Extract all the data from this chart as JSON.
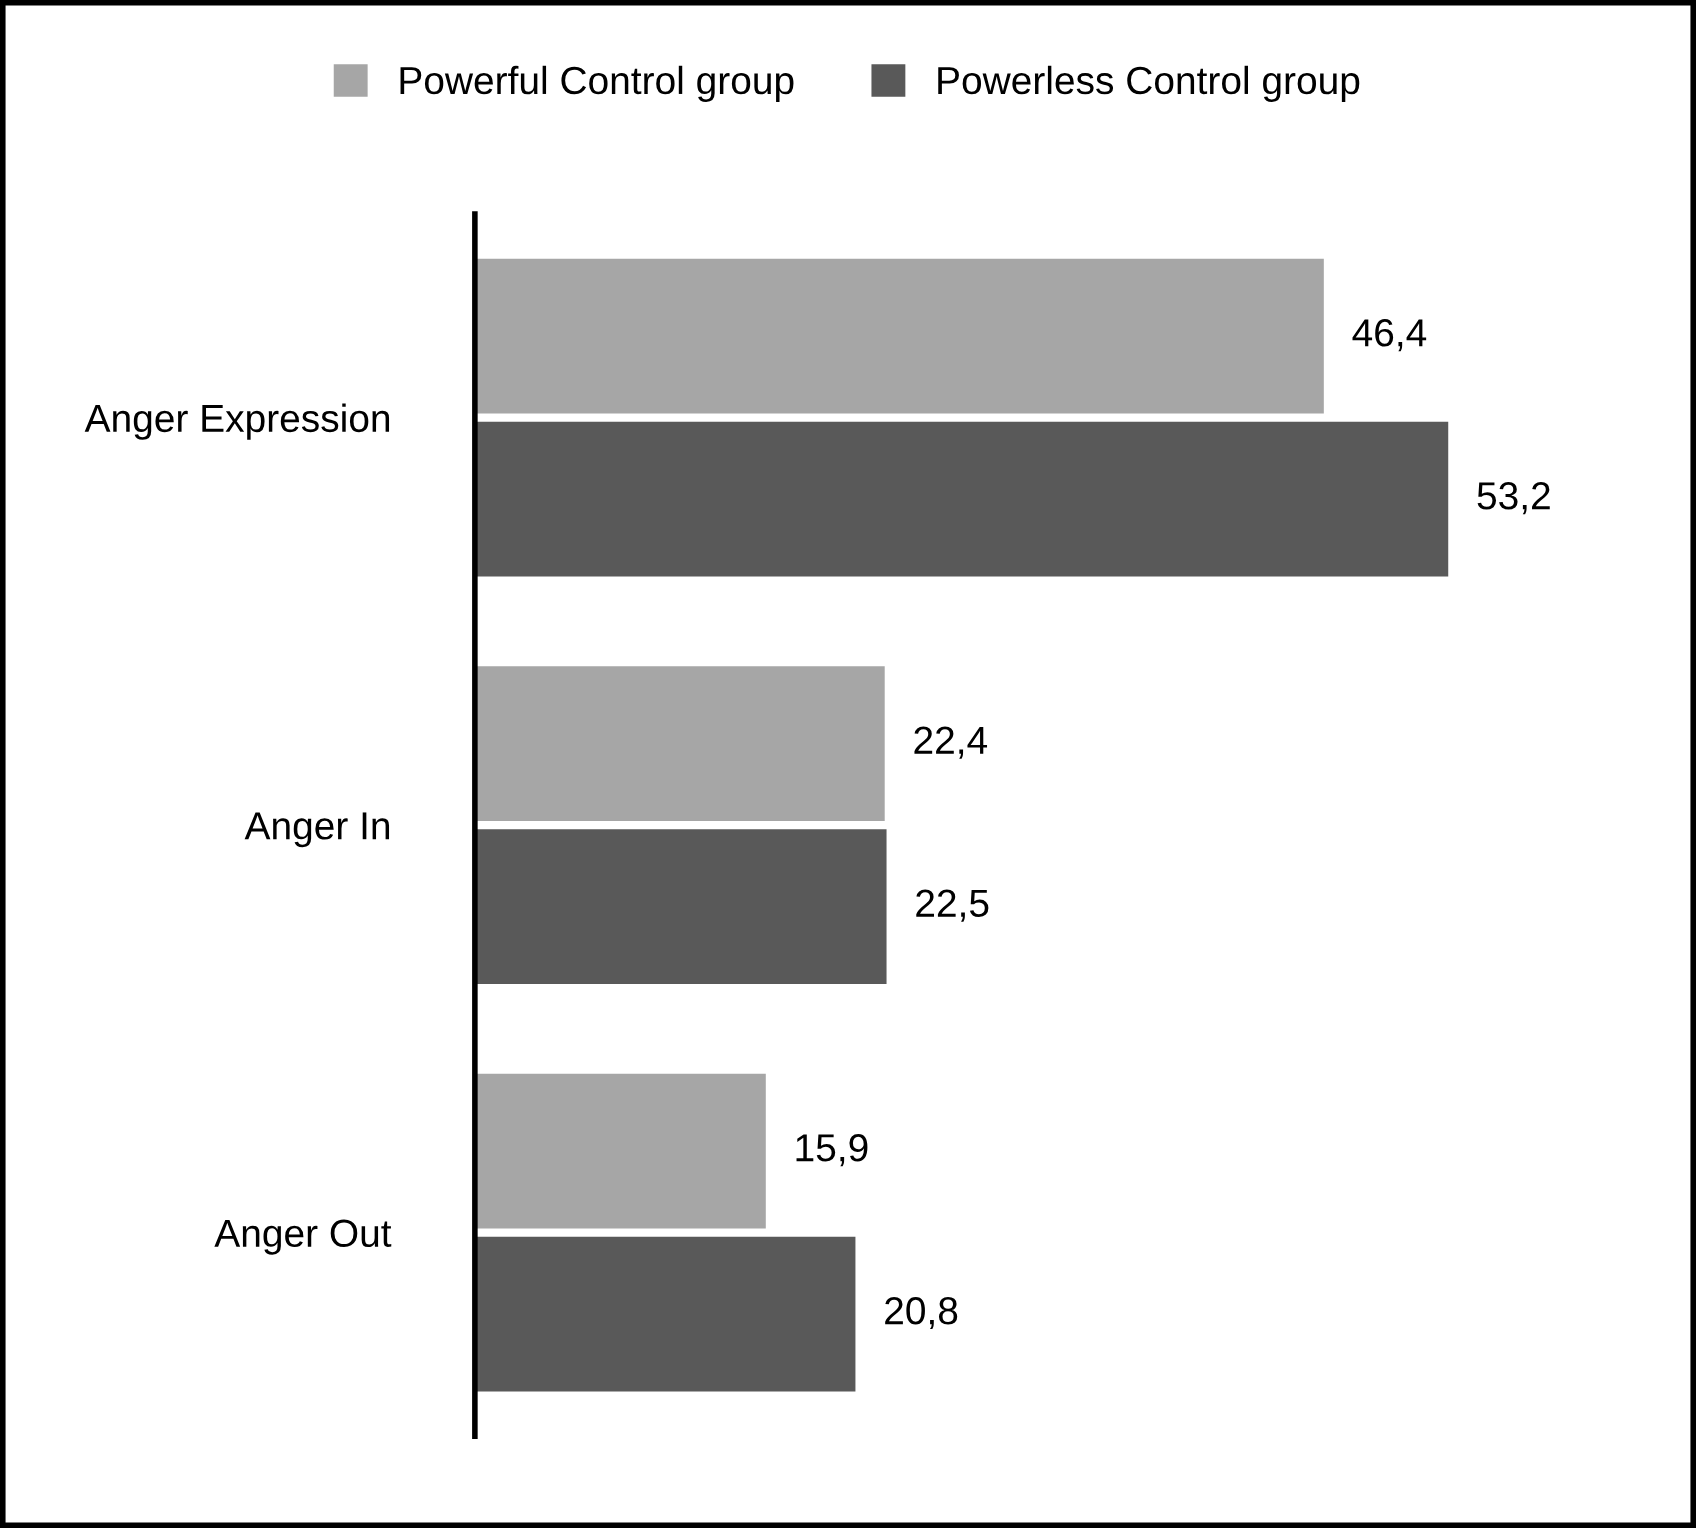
{
  "chart_data": {
    "type": "bar",
    "orientation": "horizontal",
    "categories": [
      "Anger Expression",
      "Anger In",
      "Anger Out"
    ],
    "series": [
      {
        "name": "Powerful Control group",
        "color": "#a6a6a6",
        "values": [
          46.4,
          22.4,
          15.9
        ],
        "value_labels": [
          "46,4",
          "22,4",
          "15,9"
        ]
      },
      {
        "name": "Powerless Control group",
        "color": "#595959",
        "values": [
          53.2,
          22.5,
          20.8
        ],
        "value_labels": [
          "53,2",
          "22,5",
          "20,8"
        ]
      }
    ],
    "legend": "top",
    "grid": false
  }
}
